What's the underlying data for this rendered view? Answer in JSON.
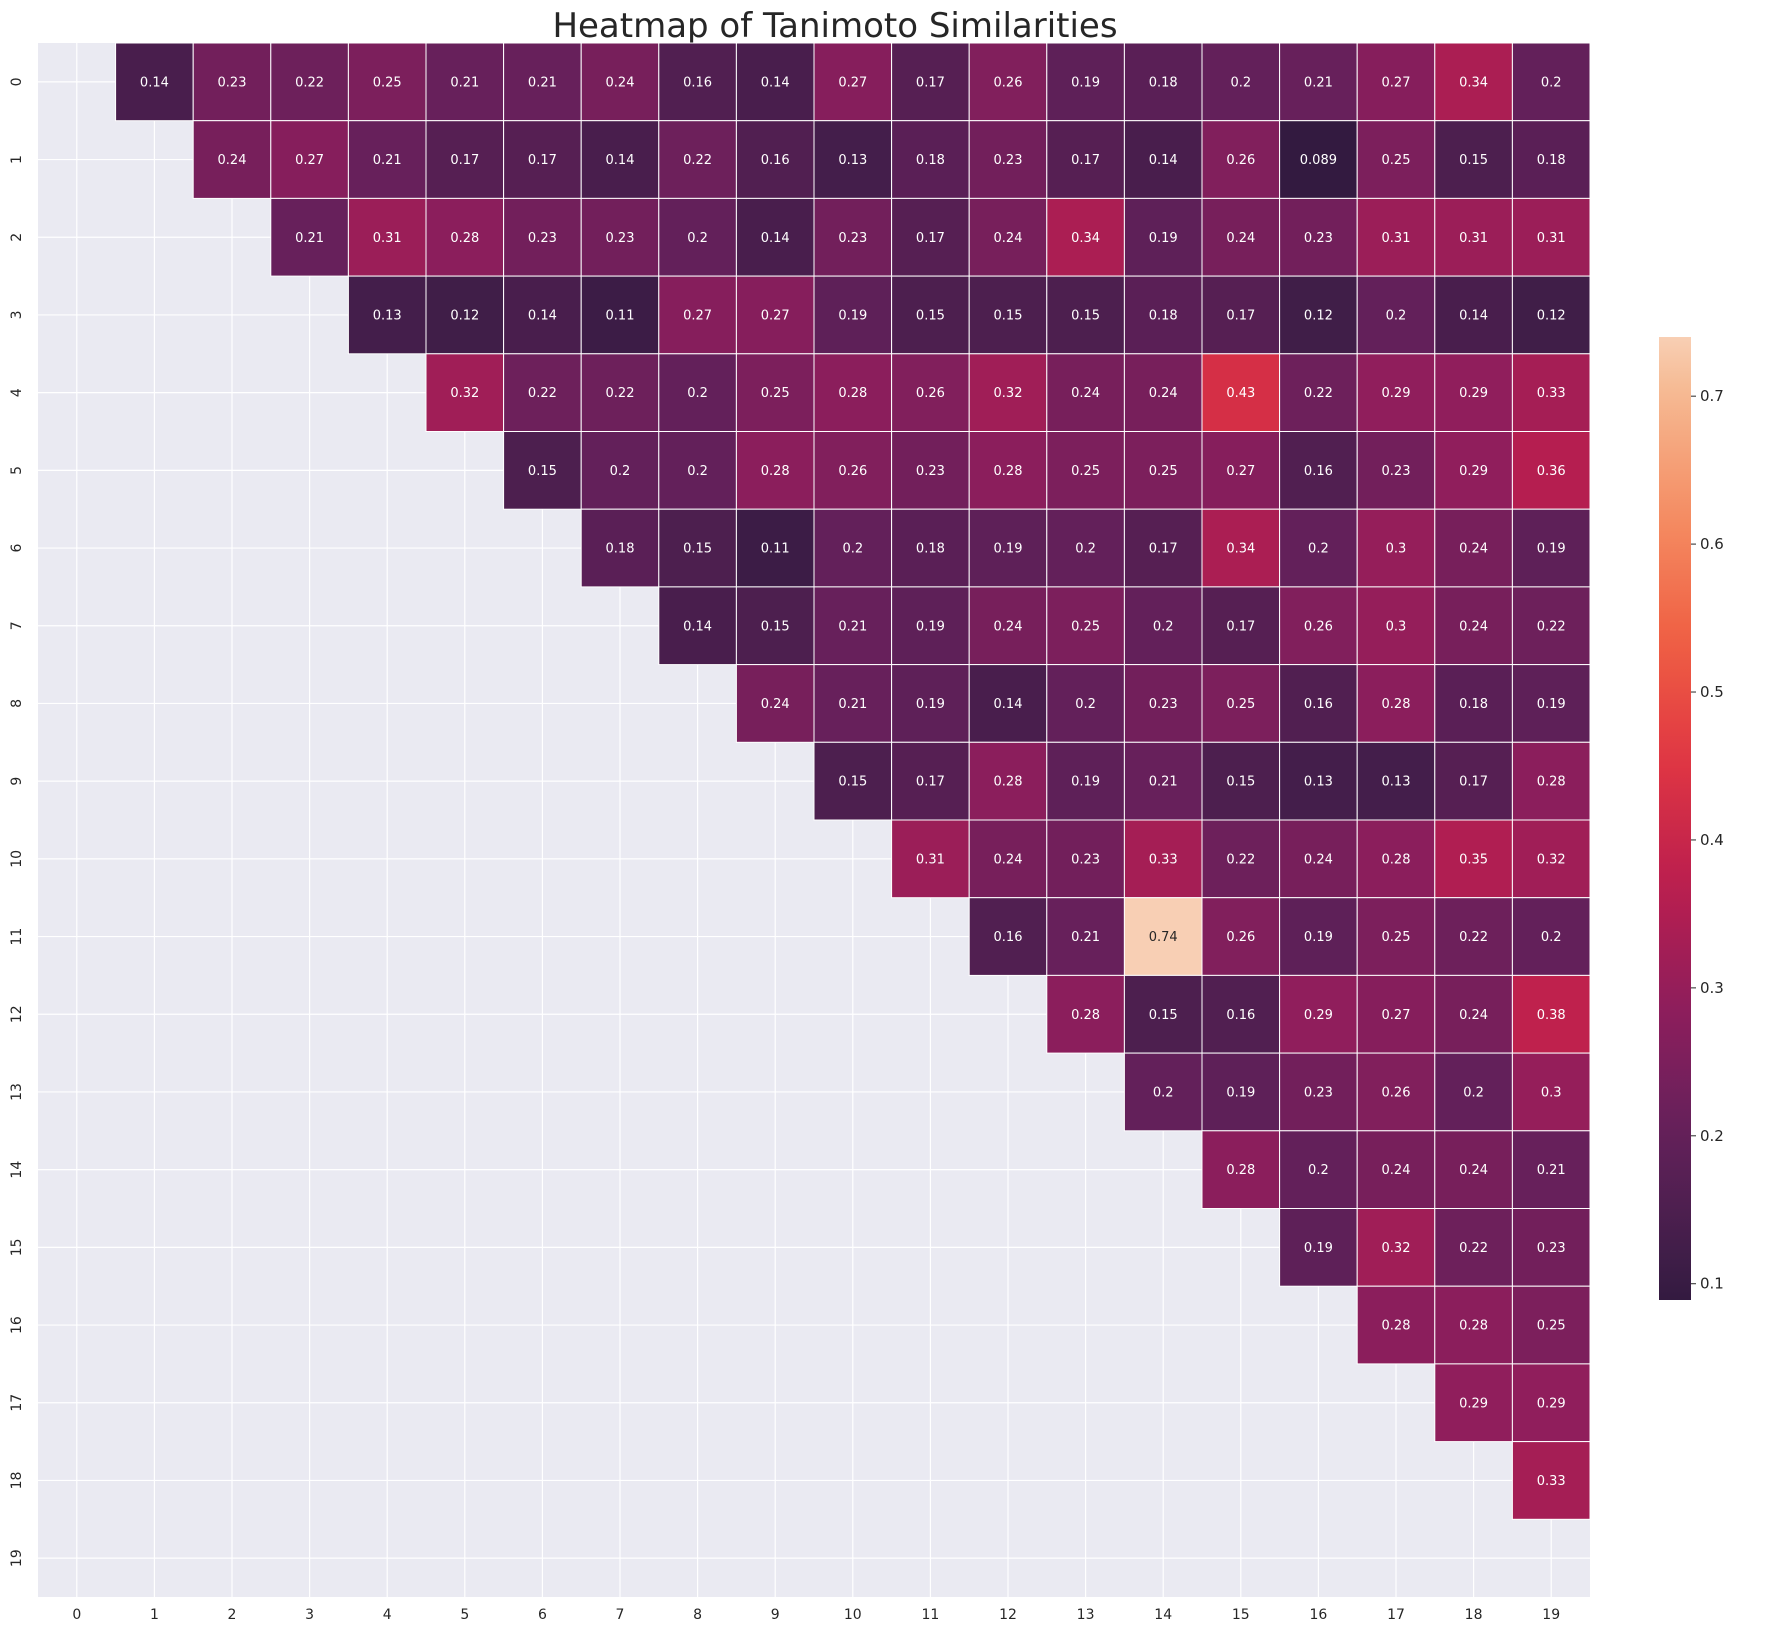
{
  "chart_data": {
    "type": "heatmap",
    "title": "Heatmap of Tanimoto Similarities",
    "xlabel": "",
    "ylabel": "",
    "x_ticks": [
      "0",
      "1",
      "2",
      "3",
      "4",
      "5",
      "6",
      "7",
      "8",
      "9",
      "10",
      "11",
      "12",
      "13",
      "14",
      "15",
      "16",
      "17",
      "18",
      "19"
    ],
    "y_ticks": [
      "0",
      "1",
      "2",
      "3",
      "4",
      "5",
      "6",
      "7",
      "8",
      "9",
      "10",
      "11",
      "12",
      "13",
      "14",
      "15",
      "16",
      "17",
      "18",
      "19"
    ],
    "colorbar": {
      "ticks": [
        0.1,
        0.2,
        0.3,
        0.4,
        0.5,
        0.6,
        0.7
      ],
      "tick_labels": [
        "0.1",
        "0.2",
        "0.3",
        "0.4",
        "0.5",
        "0.6",
        "0.7"
      ],
      "vmin": 0.089,
      "vmax": 0.74,
      "colormap": "rocket-like (dark purple to peach)"
    },
    "masked": "lower triangle including diagonal",
    "grid": true,
    "colors": {
      "background": "#eaeaf2",
      "grid": "#ffffff",
      "text_light": "#ffffff",
      "text_dark": "#262626"
    },
    "cells": [
      {
        "row": 0,
        "col": 1,
        "label": "0.14"
      },
      {
        "row": 0,
        "col": 2,
        "label": "0.23"
      },
      {
        "row": 0,
        "col": 3,
        "label": "0.22"
      },
      {
        "row": 0,
        "col": 4,
        "label": "0.25"
      },
      {
        "row": 0,
        "col": 5,
        "label": "0.21"
      },
      {
        "row": 0,
        "col": 6,
        "label": "0.21"
      },
      {
        "row": 0,
        "col": 7,
        "label": "0.24"
      },
      {
        "row": 0,
        "col": 8,
        "label": "0.16"
      },
      {
        "row": 0,
        "col": 9,
        "label": "0.14"
      },
      {
        "row": 0,
        "col": 10,
        "label": "0.27"
      },
      {
        "row": 0,
        "col": 11,
        "label": "0.17"
      },
      {
        "row": 0,
        "col": 12,
        "label": "0.26"
      },
      {
        "row": 0,
        "col": 13,
        "label": "0.19"
      },
      {
        "row": 0,
        "col": 14,
        "label": "0.18"
      },
      {
        "row": 0,
        "col": 15,
        "label": "0.2"
      },
      {
        "row": 0,
        "col": 16,
        "label": "0.21"
      },
      {
        "row": 0,
        "col": 17,
        "label": "0.27"
      },
      {
        "row": 0,
        "col": 18,
        "label": "0.34"
      },
      {
        "row": 0,
        "col": 19,
        "label": "0.2"
      },
      {
        "row": 1,
        "col": 2,
        "label": "0.24"
      },
      {
        "row": 1,
        "col": 3,
        "label": "0.27"
      },
      {
        "row": 1,
        "col": 4,
        "label": "0.21"
      },
      {
        "row": 1,
        "col": 5,
        "label": "0.17"
      },
      {
        "row": 1,
        "col": 6,
        "label": "0.17"
      },
      {
        "row": 1,
        "col": 7,
        "label": "0.14"
      },
      {
        "row": 1,
        "col": 8,
        "label": "0.22"
      },
      {
        "row": 1,
        "col": 9,
        "label": "0.16"
      },
      {
        "row": 1,
        "col": 10,
        "label": "0.13"
      },
      {
        "row": 1,
        "col": 11,
        "label": "0.18"
      },
      {
        "row": 1,
        "col": 12,
        "label": "0.23"
      },
      {
        "row": 1,
        "col": 13,
        "label": "0.17"
      },
      {
        "row": 1,
        "col": 14,
        "label": "0.14"
      },
      {
        "row": 1,
        "col": 15,
        "label": "0.26"
      },
      {
        "row": 1,
        "col": 16,
        "label": "0.089"
      },
      {
        "row": 1,
        "col": 17,
        "label": "0.25"
      },
      {
        "row": 1,
        "col": 18,
        "label": "0.15"
      },
      {
        "row": 1,
        "col": 19,
        "label": "0.18"
      },
      {
        "row": 2,
        "col": 3,
        "label": "0.21"
      },
      {
        "row": 2,
        "col": 4,
        "label": "0.31"
      },
      {
        "row": 2,
        "col": 5,
        "label": "0.28"
      },
      {
        "row": 2,
        "col": 6,
        "label": "0.23"
      },
      {
        "row": 2,
        "col": 7,
        "label": "0.23"
      },
      {
        "row": 2,
        "col": 8,
        "label": "0.2"
      },
      {
        "row": 2,
        "col": 9,
        "label": "0.14"
      },
      {
        "row": 2,
        "col": 10,
        "label": "0.23"
      },
      {
        "row": 2,
        "col": 11,
        "label": "0.17"
      },
      {
        "row": 2,
        "col": 12,
        "label": "0.24"
      },
      {
        "row": 2,
        "col": 13,
        "label": "0.34"
      },
      {
        "row": 2,
        "col": 14,
        "label": "0.19"
      },
      {
        "row": 2,
        "col": 15,
        "label": "0.24"
      },
      {
        "row": 2,
        "col": 16,
        "label": "0.23"
      },
      {
        "row": 2,
        "col": 17,
        "label": "0.31"
      },
      {
        "row": 2,
        "col": 18,
        "label": "0.31"
      },
      {
        "row": 2,
        "col": 19,
        "label": "0.31"
      },
      {
        "row": 3,
        "col": 4,
        "label": "0.13"
      },
      {
        "row": 3,
        "col": 5,
        "label": "0.12"
      },
      {
        "row": 3,
        "col": 6,
        "label": "0.14"
      },
      {
        "row": 3,
        "col": 7,
        "label": "0.11"
      },
      {
        "row": 3,
        "col": 8,
        "label": "0.27"
      },
      {
        "row": 3,
        "col": 9,
        "label": "0.27"
      },
      {
        "row": 3,
        "col": 10,
        "label": "0.19"
      },
      {
        "row": 3,
        "col": 11,
        "label": "0.15"
      },
      {
        "row": 3,
        "col": 12,
        "label": "0.15"
      },
      {
        "row": 3,
        "col": 13,
        "label": "0.15"
      },
      {
        "row": 3,
        "col": 14,
        "label": "0.18"
      },
      {
        "row": 3,
        "col": 15,
        "label": "0.17"
      },
      {
        "row": 3,
        "col": 16,
        "label": "0.12"
      },
      {
        "row": 3,
        "col": 17,
        "label": "0.2"
      },
      {
        "row": 3,
        "col": 18,
        "label": "0.14"
      },
      {
        "row": 3,
        "col": 19,
        "label": "0.12"
      },
      {
        "row": 4,
        "col": 5,
        "label": "0.32"
      },
      {
        "row": 4,
        "col": 6,
        "label": "0.22"
      },
      {
        "row": 4,
        "col": 7,
        "label": "0.22"
      },
      {
        "row": 4,
        "col": 8,
        "label": "0.2"
      },
      {
        "row": 4,
        "col": 9,
        "label": "0.25"
      },
      {
        "row": 4,
        "col": 10,
        "label": "0.28"
      },
      {
        "row": 4,
        "col": 11,
        "label": "0.26"
      },
      {
        "row": 4,
        "col": 12,
        "label": "0.32"
      },
      {
        "row": 4,
        "col": 13,
        "label": "0.24"
      },
      {
        "row": 4,
        "col": 14,
        "label": "0.24"
      },
      {
        "row": 4,
        "col": 15,
        "label": "0.43"
      },
      {
        "row": 4,
        "col": 16,
        "label": "0.22"
      },
      {
        "row": 4,
        "col": 17,
        "label": "0.29"
      },
      {
        "row": 4,
        "col": 18,
        "label": "0.29"
      },
      {
        "row": 4,
        "col": 19,
        "label": "0.33"
      },
      {
        "row": 5,
        "col": 6,
        "label": "0.15"
      },
      {
        "row": 5,
        "col": 7,
        "label": "0.2"
      },
      {
        "row": 5,
        "col": 8,
        "label": "0.2"
      },
      {
        "row": 5,
        "col": 9,
        "label": "0.28"
      },
      {
        "row": 5,
        "col": 10,
        "label": "0.26"
      },
      {
        "row": 5,
        "col": 11,
        "label": "0.23"
      },
      {
        "row": 5,
        "col": 12,
        "label": "0.28"
      },
      {
        "row": 5,
        "col": 13,
        "label": "0.25"
      },
      {
        "row": 5,
        "col": 14,
        "label": "0.25"
      },
      {
        "row": 5,
        "col": 15,
        "label": "0.27"
      },
      {
        "row": 5,
        "col": 16,
        "label": "0.16"
      },
      {
        "row": 5,
        "col": 17,
        "label": "0.23"
      },
      {
        "row": 5,
        "col": 18,
        "label": "0.29"
      },
      {
        "row": 5,
        "col": 19,
        "label": "0.36"
      },
      {
        "row": 6,
        "col": 7,
        "label": "0.18"
      },
      {
        "row": 6,
        "col": 8,
        "label": "0.15"
      },
      {
        "row": 6,
        "col": 9,
        "label": "0.11"
      },
      {
        "row": 6,
        "col": 10,
        "label": "0.2"
      },
      {
        "row": 6,
        "col": 11,
        "label": "0.18"
      },
      {
        "row": 6,
        "col": 12,
        "label": "0.19"
      },
      {
        "row": 6,
        "col": 13,
        "label": "0.2"
      },
      {
        "row": 6,
        "col": 14,
        "label": "0.17"
      },
      {
        "row": 6,
        "col": 15,
        "label": "0.34"
      },
      {
        "row": 6,
        "col": 16,
        "label": "0.2"
      },
      {
        "row": 6,
        "col": 17,
        "label": "0.3"
      },
      {
        "row": 6,
        "col": 18,
        "label": "0.24"
      },
      {
        "row": 6,
        "col": 19,
        "label": "0.19"
      },
      {
        "row": 7,
        "col": 8,
        "label": "0.14"
      },
      {
        "row": 7,
        "col": 9,
        "label": "0.15"
      },
      {
        "row": 7,
        "col": 10,
        "label": "0.21"
      },
      {
        "row": 7,
        "col": 11,
        "label": "0.19"
      },
      {
        "row": 7,
        "col": 12,
        "label": "0.24"
      },
      {
        "row": 7,
        "col": 13,
        "label": "0.25"
      },
      {
        "row": 7,
        "col": 14,
        "label": "0.2"
      },
      {
        "row": 7,
        "col": 15,
        "label": "0.17"
      },
      {
        "row": 7,
        "col": 16,
        "label": "0.26"
      },
      {
        "row": 7,
        "col": 17,
        "label": "0.3"
      },
      {
        "row": 7,
        "col": 18,
        "label": "0.24"
      },
      {
        "row": 7,
        "col": 19,
        "label": "0.22"
      },
      {
        "row": 8,
        "col": 9,
        "label": "0.24"
      },
      {
        "row": 8,
        "col": 10,
        "label": "0.21"
      },
      {
        "row": 8,
        "col": 11,
        "label": "0.19"
      },
      {
        "row": 8,
        "col": 12,
        "label": "0.14"
      },
      {
        "row": 8,
        "col": 13,
        "label": "0.2"
      },
      {
        "row": 8,
        "col": 14,
        "label": "0.23"
      },
      {
        "row": 8,
        "col": 15,
        "label": "0.25"
      },
      {
        "row": 8,
        "col": 16,
        "label": "0.16"
      },
      {
        "row": 8,
        "col": 17,
        "label": "0.28"
      },
      {
        "row": 8,
        "col": 18,
        "label": "0.18"
      },
      {
        "row": 8,
        "col": 19,
        "label": "0.19"
      },
      {
        "row": 9,
        "col": 10,
        "label": "0.15"
      },
      {
        "row": 9,
        "col": 11,
        "label": "0.17"
      },
      {
        "row": 9,
        "col": 12,
        "label": "0.28"
      },
      {
        "row": 9,
        "col": 13,
        "label": "0.19"
      },
      {
        "row": 9,
        "col": 14,
        "label": "0.21"
      },
      {
        "row": 9,
        "col": 15,
        "label": "0.15"
      },
      {
        "row": 9,
        "col": 16,
        "label": "0.13"
      },
      {
        "row": 9,
        "col": 17,
        "label": "0.13"
      },
      {
        "row": 9,
        "col": 18,
        "label": "0.17"
      },
      {
        "row": 9,
        "col": 19,
        "label": "0.28"
      },
      {
        "row": 10,
        "col": 11,
        "label": "0.31"
      },
      {
        "row": 10,
        "col": 12,
        "label": "0.24"
      },
      {
        "row": 10,
        "col": 13,
        "label": "0.23"
      },
      {
        "row": 10,
        "col": 14,
        "label": "0.33"
      },
      {
        "row": 10,
        "col": 15,
        "label": "0.22"
      },
      {
        "row": 10,
        "col": 16,
        "label": "0.24"
      },
      {
        "row": 10,
        "col": 17,
        "label": "0.28"
      },
      {
        "row": 10,
        "col": 18,
        "label": "0.35"
      },
      {
        "row": 10,
        "col": 19,
        "label": "0.32"
      },
      {
        "row": 11,
        "col": 12,
        "label": "0.16"
      },
      {
        "row": 11,
        "col": 13,
        "label": "0.21"
      },
      {
        "row": 11,
        "col": 14,
        "label": "0.74"
      },
      {
        "row": 11,
        "col": 15,
        "label": "0.26"
      },
      {
        "row": 11,
        "col": 16,
        "label": "0.19"
      },
      {
        "row": 11,
        "col": 17,
        "label": "0.25"
      },
      {
        "row": 11,
        "col": 18,
        "label": "0.22"
      },
      {
        "row": 11,
        "col": 19,
        "label": "0.2"
      },
      {
        "row": 12,
        "col": 13,
        "label": "0.28"
      },
      {
        "row": 12,
        "col": 14,
        "label": "0.15"
      },
      {
        "row": 12,
        "col": 15,
        "label": "0.16"
      },
      {
        "row": 12,
        "col": 16,
        "label": "0.29"
      },
      {
        "row": 12,
        "col": 17,
        "label": "0.27"
      },
      {
        "row": 12,
        "col": 18,
        "label": "0.24"
      },
      {
        "row": 12,
        "col": 19,
        "label": "0.38"
      },
      {
        "row": 13,
        "col": 14,
        "label": "0.2"
      },
      {
        "row": 13,
        "col": 15,
        "label": "0.19"
      },
      {
        "row": 13,
        "col": 16,
        "label": "0.23"
      },
      {
        "row": 13,
        "col": 17,
        "label": "0.26"
      },
      {
        "row": 13,
        "col": 18,
        "label": "0.2"
      },
      {
        "row": 13,
        "col": 19,
        "label": "0.3"
      },
      {
        "row": 14,
        "col": 15,
        "label": "0.28"
      },
      {
        "row": 14,
        "col": 16,
        "label": "0.2"
      },
      {
        "row": 14,
        "col": 17,
        "label": "0.24"
      },
      {
        "row": 14,
        "col": 18,
        "label": "0.24"
      },
      {
        "row": 14,
        "col": 19,
        "label": "0.21"
      },
      {
        "row": 15,
        "col": 16,
        "label": "0.19"
      },
      {
        "row": 15,
        "col": 17,
        "label": "0.32"
      },
      {
        "row": 15,
        "col": 18,
        "label": "0.22"
      },
      {
        "row": 15,
        "col": 19,
        "label": "0.23"
      },
      {
        "row": 16,
        "col": 17,
        "label": "0.28"
      },
      {
        "row": 16,
        "col": 18,
        "label": "0.28"
      },
      {
        "row": 16,
        "col": 19,
        "label": "0.25"
      },
      {
        "row": 17,
        "col": 18,
        "label": "0.29"
      },
      {
        "row": 17,
        "col": 19,
        "label": "0.29"
      },
      {
        "row": 18,
        "col": 19,
        "label": "0.33"
      }
    ]
  }
}
